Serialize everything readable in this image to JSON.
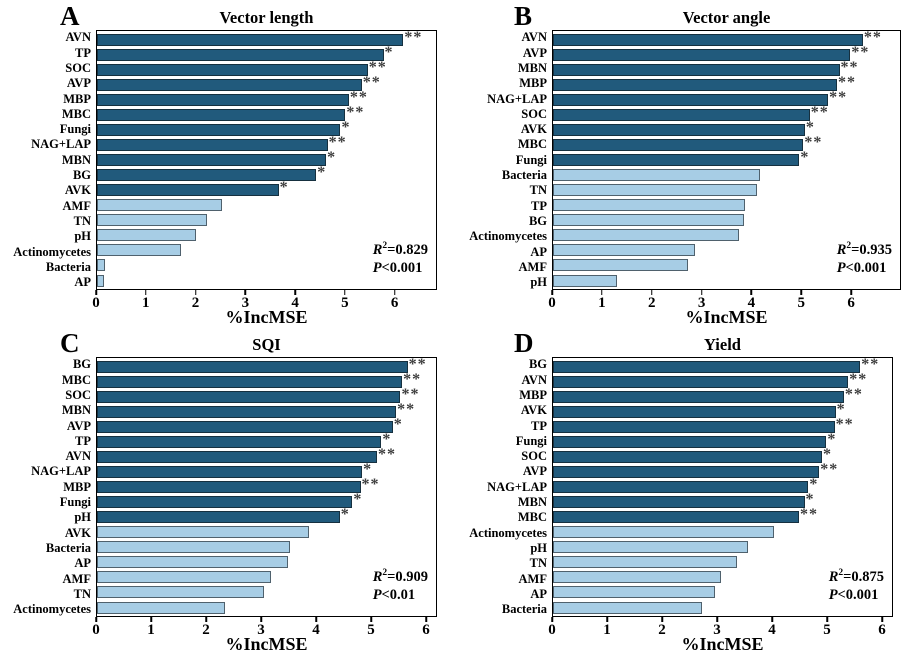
{
  "colors": {
    "dark_bar": "#215a7c",
    "light_bar": "#a7cde5",
    "dark_border": "#16303f",
    "light_border": "#4f616d",
    "star": "#3c3c3c",
    "frame": "#000000"
  },
  "chart_data": [
    {
      "panel": "A",
      "type": "bar",
      "orientation": "horizontal",
      "title": "Vector length",
      "xlabel": "%IncMSE",
      "xlim": [
        0,
        6.85
      ],
      "xticks": [
        0,
        1,
        2,
        3,
        4,
        5,
        6
      ],
      "legend": "none",
      "stats": {
        "r2_label": "R",
        "r2_sup": "2",
        "r2_eq": "=0.829",
        "p_label": "P",
        "p_rel": "<0.001"
      },
      "bars": [
        {
          "label": "AVN",
          "value": 6.19,
          "sig": "**",
          "group": "dark"
        },
        {
          "label": "TP",
          "value": 5.79,
          "sig": "*",
          "group": "dark"
        },
        {
          "label": "SOC",
          "value": 5.47,
          "sig": "**",
          "group": "dark"
        },
        {
          "label": "AVP",
          "value": 5.35,
          "sig": "**",
          "group": "dark"
        },
        {
          "label": "MBP",
          "value": 5.09,
          "sig": "**",
          "group": "dark"
        },
        {
          "label": "MBC",
          "value": 5.02,
          "sig": "**",
          "group": "dark"
        },
        {
          "label": "Fungi",
          "value": 4.92,
          "sig": "*",
          "group": "dark"
        },
        {
          "label": "NAG+LAP",
          "value": 4.66,
          "sig": "**",
          "group": "dark"
        },
        {
          "label": "MBN",
          "value": 4.63,
          "sig": "*",
          "group": "dark"
        },
        {
          "label": "BG",
          "value": 4.43,
          "sig": "*",
          "group": "dark"
        },
        {
          "label": "AVK",
          "value": 3.67,
          "sig": "*",
          "group": "dark"
        },
        {
          "label": "AMF",
          "value": 2.53,
          "sig": "",
          "group": "light"
        },
        {
          "label": "TN",
          "value": 2.22,
          "sig": "",
          "group": "light"
        },
        {
          "label": "pH",
          "value": 2.0,
          "sig": "",
          "group": "light"
        },
        {
          "label": "Actinomycetes",
          "value": 1.7,
          "sig": "",
          "group": "light"
        },
        {
          "label": "Bacteria",
          "value": 0.17,
          "sig": "",
          "group": "light"
        },
        {
          "label": "AP",
          "value": 0.15,
          "sig": "",
          "group": "light"
        }
      ]
    },
    {
      "panel": "B",
      "type": "bar",
      "orientation": "horizontal",
      "title": "Vector angle",
      "xlabel": "%IncMSE",
      "xlim": [
        0,
        7.0
      ],
      "xticks": [
        0,
        1,
        2,
        3,
        4,
        5,
        6
      ],
      "legend": "none",
      "stats": {
        "r2_label": "R",
        "r2_sup": "2",
        "r2_eq": "=0.935",
        "p_label": "P",
        "p_rel": "<0.001"
      },
      "bars": [
        {
          "label": "AVN",
          "value": 6.25,
          "sig": "**",
          "group": "dark"
        },
        {
          "label": "AVP",
          "value": 6.0,
          "sig": "**",
          "group": "dark"
        },
        {
          "label": "MBN",
          "value": 5.78,
          "sig": "**",
          "group": "dark"
        },
        {
          "label": "MBP",
          "value": 5.73,
          "sig": "**",
          "group": "dark"
        },
        {
          "label": "NAG+LAP",
          "value": 5.55,
          "sig": "**",
          "group": "dark"
        },
        {
          "label": "SOC",
          "value": 5.18,
          "sig": "**",
          "group": "dark"
        },
        {
          "label": "AVK",
          "value": 5.08,
          "sig": "*",
          "group": "dark"
        },
        {
          "label": "MBC",
          "value": 5.05,
          "sig": "**",
          "group": "dark"
        },
        {
          "label": "Fungi",
          "value": 4.97,
          "sig": "*",
          "group": "dark"
        },
        {
          "label": "Bacteria",
          "value": 4.18,
          "sig": "",
          "group": "light"
        },
        {
          "label": "TN",
          "value": 4.12,
          "sig": "",
          "group": "light"
        },
        {
          "label": "TP",
          "value": 3.88,
          "sig": "",
          "group": "light"
        },
        {
          "label": "BG",
          "value": 3.85,
          "sig": "",
          "group": "light"
        },
        {
          "label": "Actinomycetes",
          "value": 3.75,
          "sig": "",
          "group": "light"
        },
        {
          "label": "AP",
          "value": 2.87,
          "sig": "",
          "group": "light"
        },
        {
          "label": "AMF",
          "value": 2.72,
          "sig": "",
          "group": "light"
        },
        {
          "label": "pH",
          "value": 1.3,
          "sig": "",
          "group": "light"
        }
      ]
    },
    {
      "panel": "C",
      "type": "bar",
      "orientation": "horizontal",
      "title": "SQI",
      "xlabel": "%IncMSE",
      "xlim": [
        0,
        6.2
      ],
      "xticks": [
        0,
        1,
        2,
        3,
        4,
        5,
        6
      ],
      "legend": "none",
      "stats": {
        "r2_label": "R",
        "r2_sup": "2",
        "r2_eq": "=0.909",
        "p_label": "P",
        "p_rel": "<0.01"
      },
      "bars": [
        {
          "label": "BG",
          "value": 5.68,
          "sig": "**",
          "group": "dark"
        },
        {
          "label": "MBC",
          "value": 5.58,
          "sig": "**",
          "group": "dark"
        },
        {
          "label": "SOC",
          "value": 5.55,
          "sig": "**",
          "group": "dark"
        },
        {
          "label": "MBN",
          "value": 5.47,
          "sig": "**",
          "group": "dark"
        },
        {
          "label": "AVP",
          "value": 5.41,
          "sig": "*",
          "group": "dark"
        },
        {
          "label": "TP",
          "value": 5.2,
          "sig": "*",
          "group": "dark"
        },
        {
          "label": "AVN",
          "value": 5.12,
          "sig": "**",
          "group": "dark"
        },
        {
          "label": "NAG+LAP",
          "value": 4.85,
          "sig": "*",
          "group": "dark"
        },
        {
          "label": "MBP",
          "value": 4.82,
          "sig": "**",
          "group": "dark"
        },
        {
          "label": "Fungi",
          "value": 4.67,
          "sig": "*",
          "group": "dark"
        },
        {
          "label": "pH",
          "value": 4.44,
          "sig": "*",
          "group": "dark"
        },
        {
          "label": "AVK",
          "value": 3.88,
          "sig": "",
          "group": "light"
        },
        {
          "label": "Bacteria",
          "value": 3.53,
          "sig": "",
          "group": "light"
        },
        {
          "label": "AP",
          "value": 3.5,
          "sig": "",
          "group": "light"
        },
        {
          "label": "AMF",
          "value": 3.18,
          "sig": "",
          "group": "light"
        },
        {
          "label": "TN",
          "value": 3.06,
          "sig": "",
          "group": "light"
        },
        {
          "label": "Actinomycetes",
          "value": 2.35,
          "sig": "",
          "group": "light"
        }
      ]
    },
    {
      "panel": "D",
      "type": "bar",
      "orientation": "horizontal",
      "title": "Yield",
      "xlabel": "%IncMSE",
      "xlim": [
        0,
        6.2
      ],
      "xticks": [
        0,
        1,
        2,
        3,
        4,
        5,
        6
      ],
      "legend": "none",
      "stats": {
        "r2_label": "R",
        "r2_sup": "2",
        "r2_eq": "=0.875",
        "p_label": "P",
        "p_rel": "<0.001"
      },
      "bars": [
        {
          "label": "BG",
          "value": 5.62,
          "sig": "**",
          "group": "dark"
        },
        {
          "label": "AVN",
          "value": 5.4,
          "sig": "**",
          "group": "dark"
        },
        {
          "label": "MBP",
          "value": 5.32,
          "sig": "**",
          "group": "dark"
        },
        {
          "label": "AVK",
          "value": 5.17,
          "sig": "*",
          "group": "dark"
        },
        {
          "label": "TP",
          "value": 5.15,
          "sig": "**",
          "group": "dark"
        },
        {
          "label": "Fungi",
          "value": 5.0,
          "sig": "*",
          "group": "dark"
        },
        {
          "label": "SOC",
          "value": 4.92,
          "sig": "*",
          "group": "dark"
        },
        {
          "label": "AVP",
          "value": 4.87,
          "sig": "**",
          "group": "dark"
        },
        {
          "label": "NAG+LAP",
          "value": 4.67,
          "sig": "*",
          "group": "dark"
        },
        {
          "label": "MBN",
          "value": 4.6,
          "sig": "*",
          "group": "dark"
        },
        {
          "label": "MBC",
          "value": 4.5,
          "sig": "**",
          "group": "dark"
        },
        {
          "label": "Actinomycetes",
          "value": 4.05,
          "sig": "",
          "group": "light"
        },
        {
          "label": "pH",
          "value": 3.56,
          "sig": "",
          "group": "light"
        },
        {
          "label": "TN",
          "value": 3.36,
          "sig": "",
          "group": "light"
        },
        {
          "label": "AMF",
          "value": 3.08,
          "sig": "",
          "group": "light"
        },
        {
          "label": "AP",
          "value": 2.96,
          "sig": "",
          "group": "light"
        },
        {
          "label": "Bacteria",
          "value": 2.72,
          "sig": "",
          "group": "light"
        }
      ]
    }
  ]
}
